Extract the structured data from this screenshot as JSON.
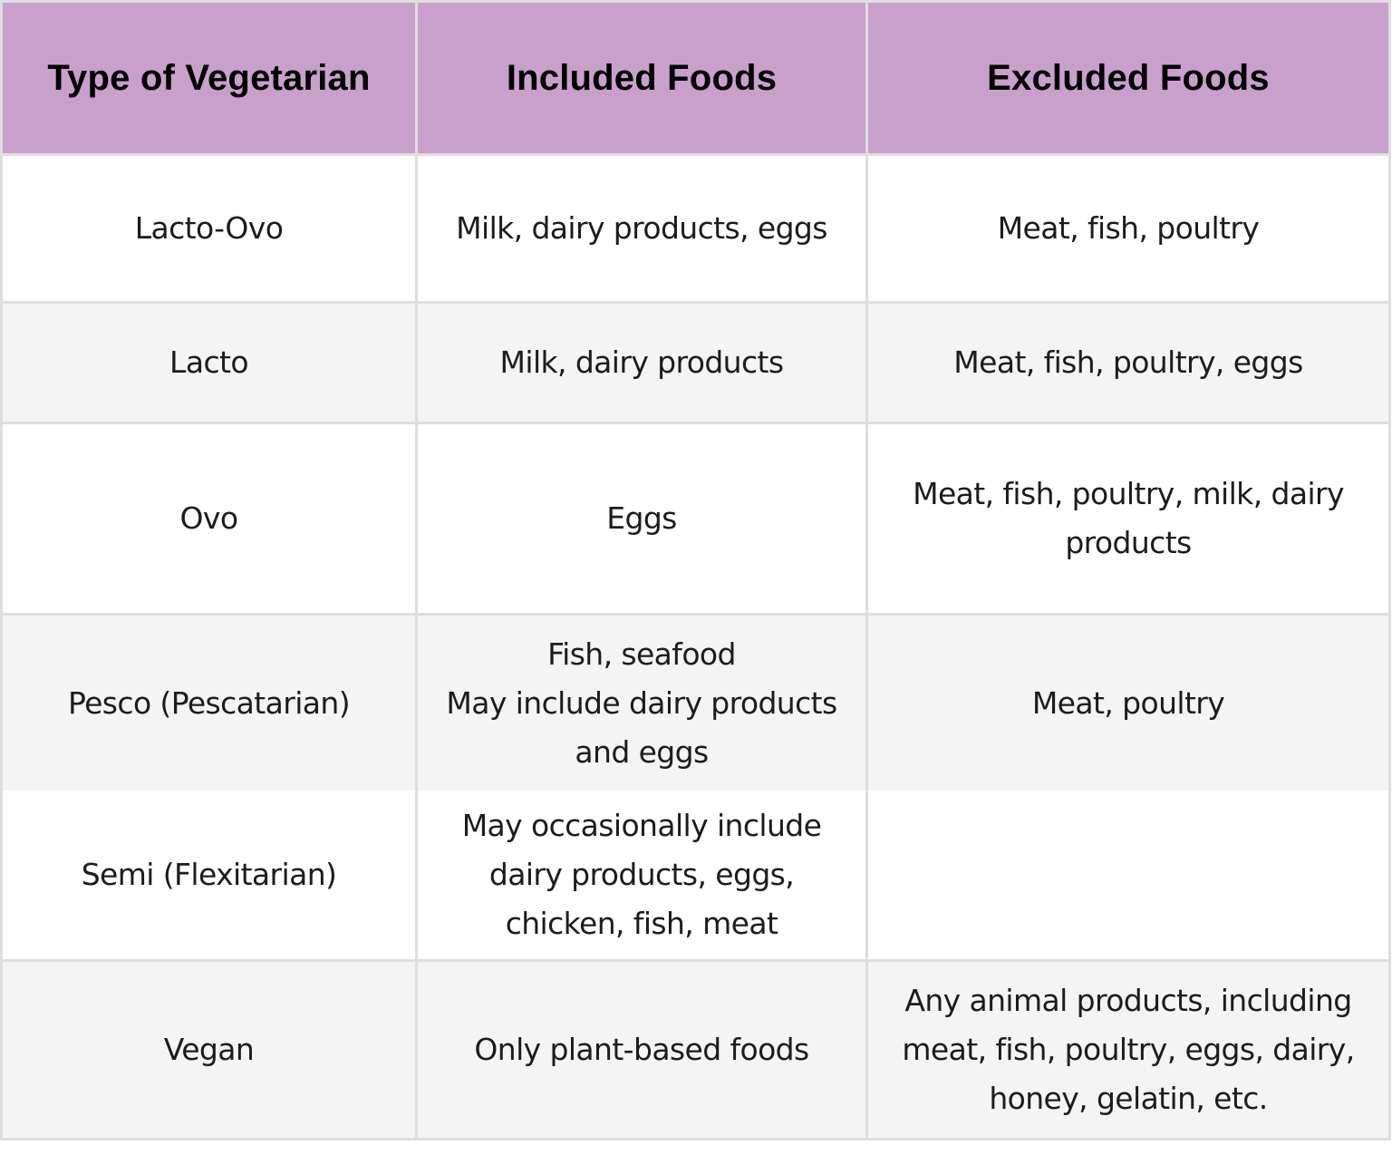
{
  "table": {
    "header_color": "#C8A0CB",
    "alt_row_color": "#F4F4F4",
    "border_color": "#DEDEDE",
    "columns": [
      "Type of Vegetarian",
      "Included Foods",
      "Excluded Foods"
    ],
    "rows": [
      {
        "type": "Lacto-Ovo",
        "included": "Milk, dairy products, eggs",
        "excluded": "Meat, fish, poultry"
      },
      {
        "type": "Lacto",
        "included": "Milk, dairy products",
        "excluded": "Meat, fish, poultry, eggs"
      },
      {
        "type": "Ovo",
        "included": "Eggs",
        "excluded": "Meat, fish, poultry, milk, dairy products"
      },
      {
        "type": "Pesco (Pescatarian)",
        "included_lines": [
          "Fish, seafood",
          "May include dairy products and eggs"
        ],
        "excluded": "Meat, poultry"
      },
      {
        "type": "Semi (Flexitarian)",
        "included": "May occasionally include dairy products, eggs, chicken, fish, meat",
        "excluded": ""
      },
      {
        "type": "Vegan",
        "included": "Only plant-based foods",
        "excluded": "Any animal products, including meat, fish, poultry, eggs, dairy, honey, gelatin, etc."
      }
    ]
  }
}
